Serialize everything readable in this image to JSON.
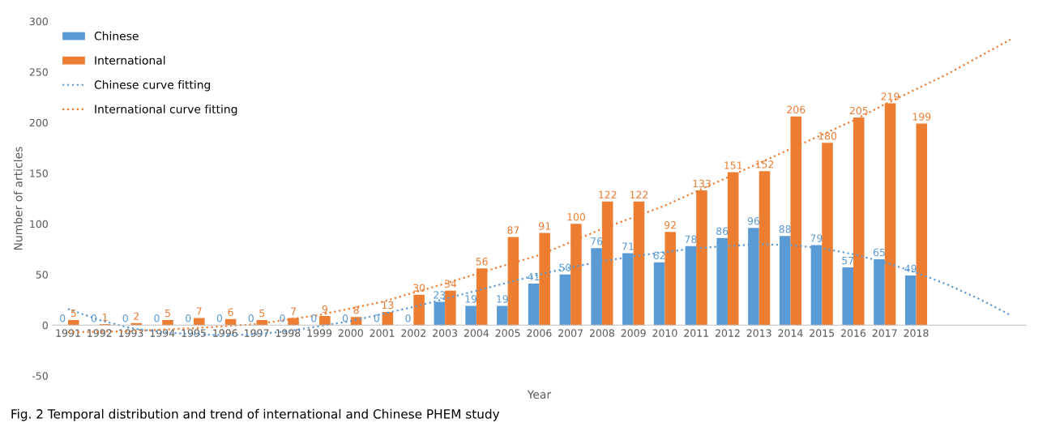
{
  "chart_data": {
    "type": "bar",
    "ylabel": "Number of articles",
    "xlabel": "Year",
    "x": [
      1991,
      1992,
      1993,
      1994,
      1995,
      1996,
      1997,
      1998,
      1999,
      2000,
      2001,
      2002,
      2003,
      2004,
      2005,
      2006,
      2007,
      2008,
      2009,
      2010,
      2011,
      2012,
      2013,
      2014,
      2015,
      2016,
      2017,
      2018
    ],
    "xlim": [
      1990.5,
      2021.5
    ],
    "xticks": [
      1991,
      1992,
      1993,
      1994,
      1995,
      1996,
      1997,
      1998,
      1999,
      2000,
      2001,
      2002,
      2003,
      2004,
      2005,
      2006,
      2007,
      2008,
      2009,
      2010,
      2011,
      2012,
      2013,
      2014,
      2015,
      2016,
      2017,
      2018
    ],
    "ylim": [
      -50,
      300
    ],
    "yticks": [
      -50,
      0,
      50,
      100,
      150,
      200,
      250,
      300
    ],
    "grid": false,
    "legend": "top left",
    "series": [
      {
        "name": "Chinese",
        "color": "#5b9bd5",
        "values": [
          0,
          0,
          0,
          0,
          0,
          0,
          0,
          0,
          0,
          0,
          0,
          0,
          23,
          19,
          19,
          41,
          50,
          76,
          71,
          62,
          78,
          86,
          96,
          88,
          79,
          57,
          65,
          49
        ],
        "value_labels": [
          "0",
          "0",
          "0",
          "0",
          "0",
          "0",
          "0",
          "0",
          "0",
          "0",
          "0",
          "0",
          "23",
          "19",
          "19",
          "41",
          "50",
          "76",
          "71",
          "62",
          "78",
          "86",
          "96",
          "88",
          "79",
          "57",
          "65",
          "49"
        ]
      },
      {
        "name": "International",
        "color": "#ed7d31",
        "values": [
          5,
          1,
          2,
          5,
          7,
          6,
          5,
          7,
          9,
          8,
          13,
          30,
          34,
          56,
          87,
          91,
          100,
          122,
          122,
          92,
          133,
          151,
          152,
          206,
          180,
          205,
          219,
          199
        ],
        "value_labels": [
          "5",
          "1",
          "2",
          "5",
          "7",
          "6",
          "5",
          "7",
          "9",
          "8",
          "13",
          "30",
          "34",
          "56",
          "87",
          "91",
          "100",
          "122",
          "122",
          "92",
          "133",
          "151",
          "152",
          "206",
          "180",
          "205",
          "219",
          "199"
        ]
      },
      {
        "name": "Chinese curve fitting",
        "type": "line",
        "line_style": "dotted",
        "color": "#5b9bd5",
        "x": [
          1991,
          1992,
          1993,
          1994,
          1995,
          1996,
          1997,
          1998,
          1999,
          2000,
          2001,
          2002,
          2003,
          2004,
          2005,
          2006,
          2007,
          2008,
          2009,
          2010,
          2011,
          2012,
          2013,
          2014,
          2015,
          2016,
          2017,
          2018,
          2019,
          2020,
          2021
        ],
        "values": [
          16,
          5,
          -3,
          -7,
          -9,
          -10,
          -9,
          -6,
          -1,
          4,
          11,
          18,
          26,
          34,
          42,
          50,
          57,
          63,
          68,
          72,
          76,
          78,
          80,
          79,
          76,
          70,
          62,
          52,
          40,
          26,
          10
        ]
      },
      {
        "name": "International curve fitting",
        "type": "line",
        "line_style": "dotted",
        "color": "#ed7d31",
        "x": [
          1991,
          1993,
          1995,
          1997,
          1999,
          2001,
          2003,
          2005,
          2006,
          2008,
          2010,
          2012,
          2014,
          2016,
          2017,
          2018,
          2019,
          2020,
          2021
        ],
        "values": [
          -7,
          -6,
          -3,
          1,
          10,
          23,
          41,
          60,
          69,
          95,
          118,
          146,
          174,
          202,
          218,
          233,
          248,
          265,
          282
        ]
      }
    ],
    "annotations": [
      "Fig. 2 Temporal distribution and trend of international and Chinese PHEM study"
    ]
  }
}
